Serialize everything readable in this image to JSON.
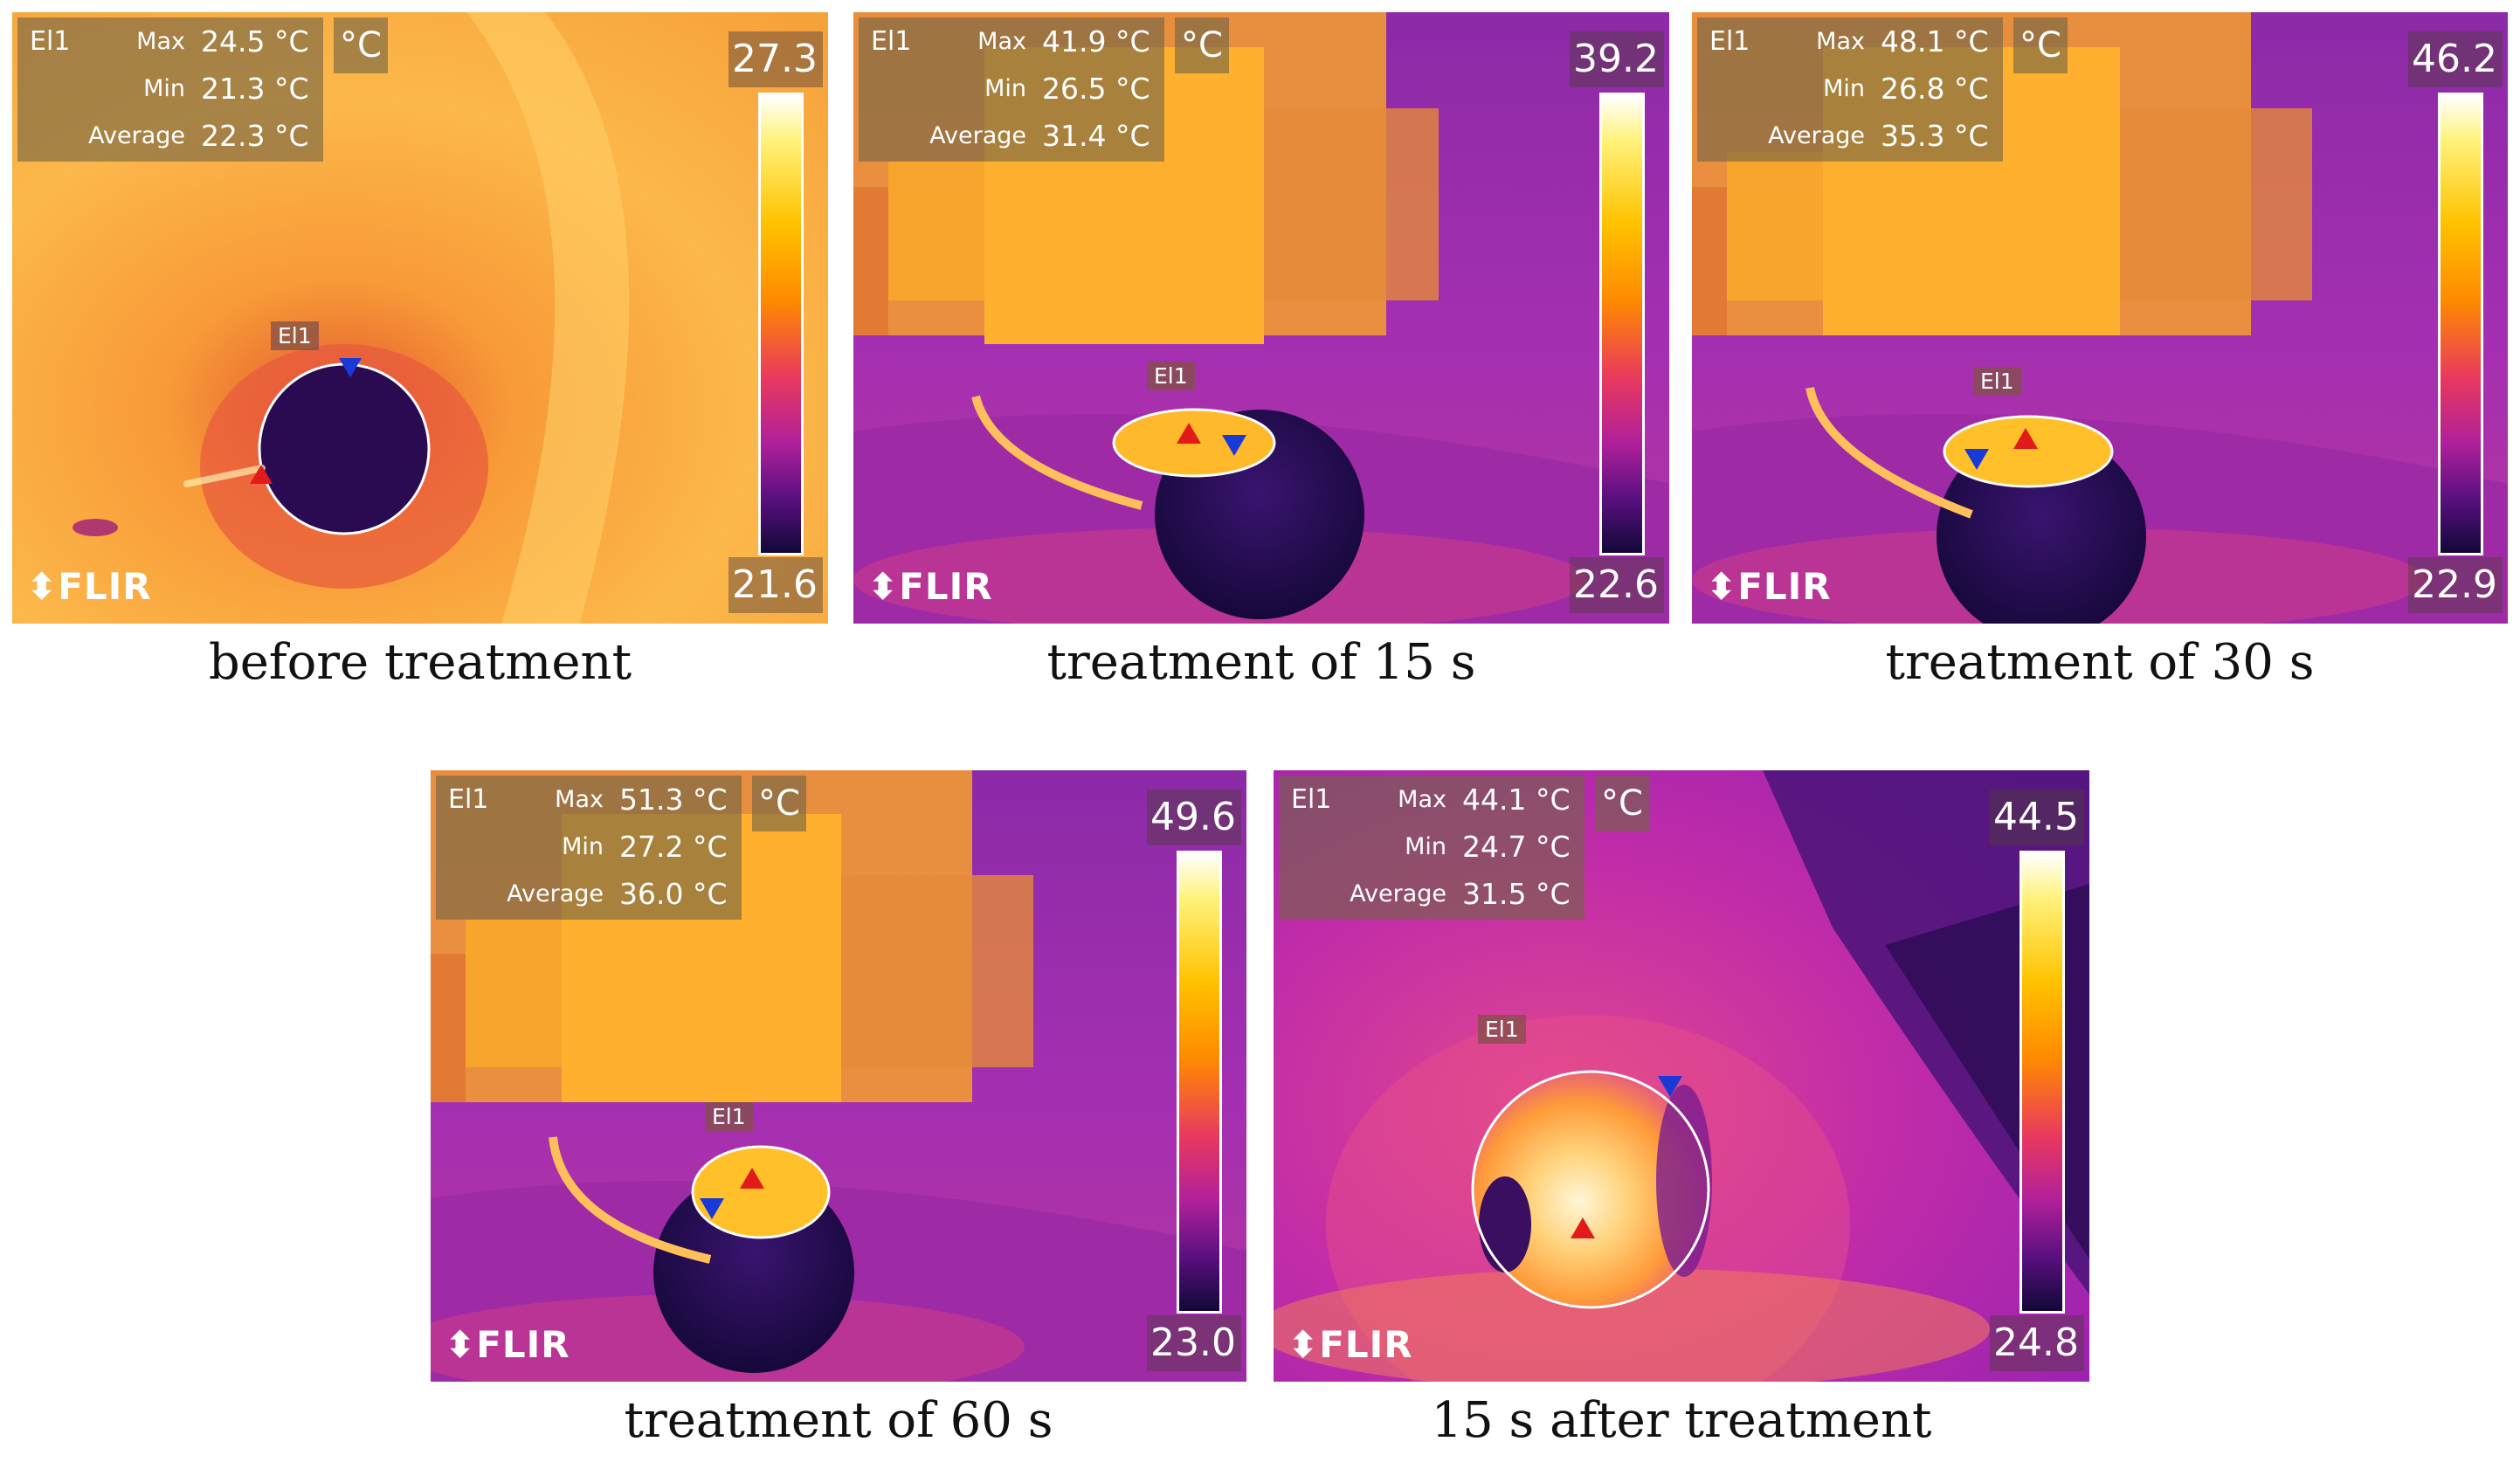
{
  "panels": [
    {
      "roi_label": "El1",
      "max_label": "Max",
      "max_value": "24.5 °C",
      "min_label": "Min",
      "min_value": "21.3 °C",
      "avg_label": "Average",
      "avg_value": "22.3 °C",
      "unit": "°C",
      "scale_max": "27.3",
      "scale_min": "21.6",
      "logo": "FLIR",
      "caption": "before treatment",
      "scene_colors": [
        "#f6a23a",
        "#2a0b52"
      ]
    },
    {
      "roi_label": "El1",
      "max_label": "Max",
      "max_value": "41.9 °C",
      "min_label": "Min",
      "min_value": "26.5 °C",
      "avg_label": "Average",
      "avg_value": "31.4 °C",
      "unit": "°C",
      "scale_max": "39.2",
      "scale_min": "22.6",
      "logo": "FLIR",
      "caption": "treatment of 15 s",
      "scene_colors": [
        "#a930b0",
        "#ffb02e"
      ]
    },
    {
      "roi_label": "El1",
      "max_label": "Max",
      "max_value": "48.1 °C",
      "min_label": "Min",
      "min_value": "26.8 °C",
      "avg_label": "Average",
      "avg_value": "35.3 °C",
      "unit": "°C",
      "scale_max": "46.2",
      "scale_min": "22.9",
      "logo": "FLIR",
      "caption": "treatment of 30 s",
      "scene_colors": [
        "#a930b0",
        "#ffb02e"
      ]
    },
    {
      "roi_label": "El1",
      "max_label": "Max",
      "max_value": "51.3 °C",
      "min_label": "Min",
      "min_value": "27.2 °C",
      "avg_label": "Average",
      "avg_value": "36.0 °C",
      "unit": "°C",
      "scale_max": "49.6",
      "scale_min": "23.0",
      "logo": "FLIR",
      "caption": "treatment of 60 s",
      "scene_colors": [
        "#a930b0",
        "#ffb02e"
      ]
    },
    {
      "roi_label": "El1",
      "max_label": "Max",
      "max_value": "44.1 °C",
      "min_label": "Min",
      "min_value": "24.7 °C",
      "avg_label": "Average",
      "avg_value": "31.5 °C",
      "unit": "°C",
      "scale_max": "44.5",
      "scale_min": "24.8",
      "logo": "FLIR",
      "caption": "15 s after treatment",
      "scene_colors": [
        "#c02aa8",
        "#ffe7a0"
      ]
    }
  ]
}
